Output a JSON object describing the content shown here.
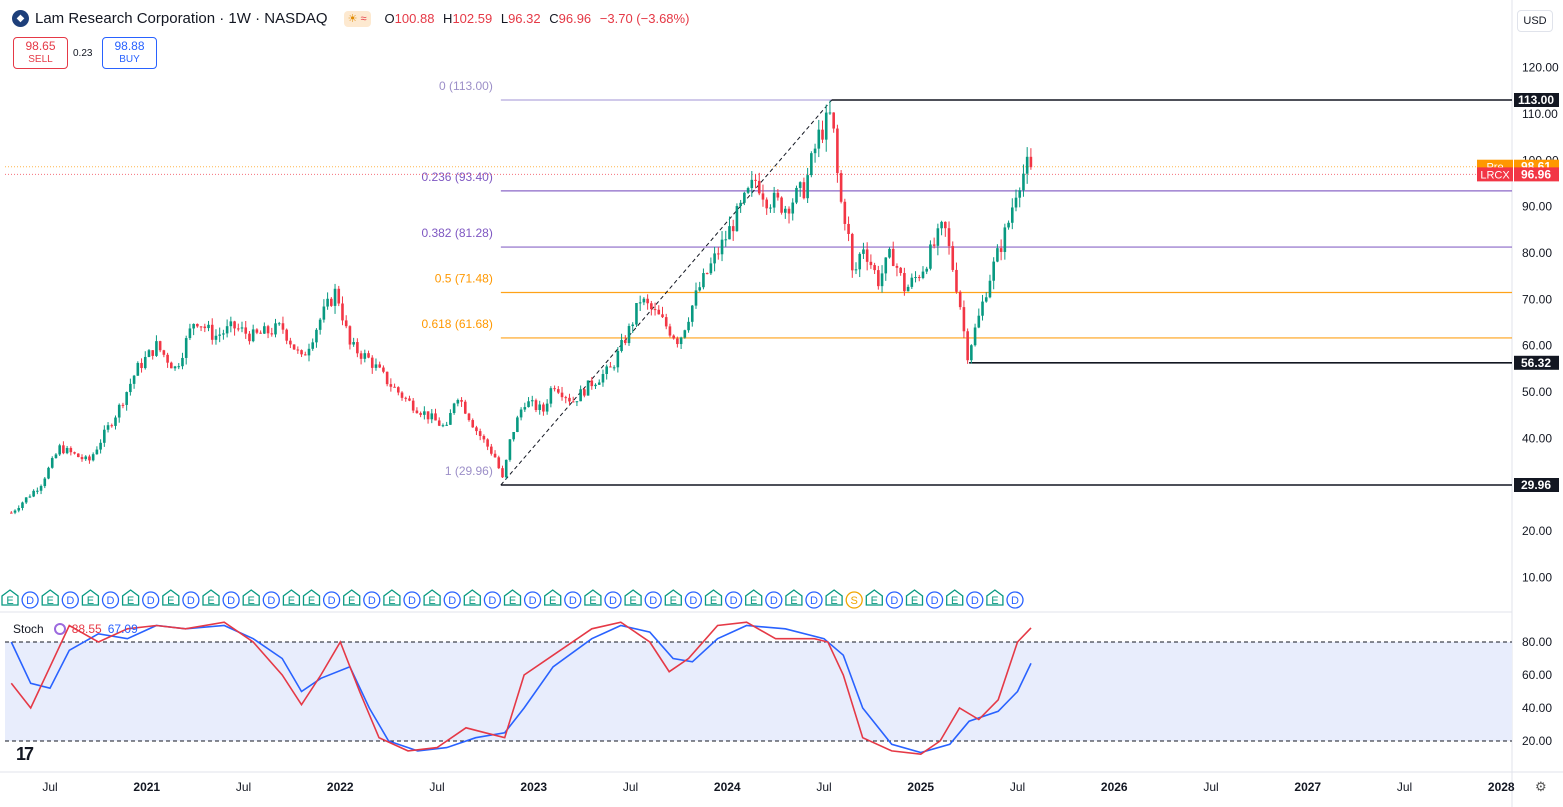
{
  "header": {
    "logo_glyph": "◆",
    "title": "Lam Research Corporation · 1W · NASDAQ",
    "session_icon": "☀",
    "session_icon2": "≈",
    "ohlc": {
      "o_label": "O",
      "o": "100.88",
      "h_label": "H",
      "h": "102.59",
      "l_label": "L",
      "l": "96.32",
      "c_label": "C",
      "c": "96.96",
      "change": "−3.70 (−3.68%)"
    }
  },
  "trade": {
    "sell_price": "98.65",
    "sell_label": "SELL",
    "spread": "0.23",
    "buy_price": "98.88",
    "buy_label": "BUY"
  },
  "currency": "USD",
  "stoch": {
    "label": "Stoch",
    "k_value": "88.55",
    "d_value": "67.09"
  },
  "tv_logo": "17",
  "settings_icon": "gear-icon",
  "colors": {
    "up": "#089981",
    "down": "#f23645",
    "fib_purple": "#7e57c2",
    "fib_orange": "#ff9800",
    "stoch_k": "#e53946",
    "stoch_d": "#2962ff",
    "band": "#e8edfc"
  },
  "chart_data": {
    "type": "candlestick",
    "y_axis_ticks": [
      "120.00",
      "110.00",
      "100.00",
      "90.00",
      "80.00",
      "70.00",
      "60.00",
      "50.00",
      "40.00",
      "30.00",
      "20.00",
      "10.00"
    ],
    "x_axis_ticks": [
      "Jul",
      "2021",
      "Jul",
      "2022",
      "Jul",
      "2023",
      "Jul",
      "2024",
      "Jul",
      "2025",
      "Jul",
      "2026",
      "Jul",
      "2027",
      "Jul",
      "2028"
    ],
    "price_labels": [
      {
        "text": "113.00",
        "value": 113.0,
        "style": "black"
      },
      {
        "tag": "Pre",
        "text": "98.61",
        "value": 98.61,
        "style": "orange"
      },
      {
        "tag": "LRCX",
        "text": "96.96",
        "value": 96.96,
        "style": "red"
      },
      {
        "text": "56.32",
        "value": 56.32,
        "style": "black"
      },
      {
        "text": "29.96",
        "value": 29.96,
        "style": "black"
      }
    ],
    "fib_levels": [
      {
        "label": "0 (113.00)",
        "value": 113.0,
        "color": "#9c8fc8"
      },
      {
        "label": "0.236 (93.40)",
        "value": 93.4,
        "color": "#7e57c2"
      },
      {
        "label": "0.382 (81.28)",
        "value": 81.28,
        "color": "#7e57c2"
      },
      {
        "label": "0.5 (71.48)",
        "value": 71.48,
        "color": "#ff9800"
      },
      {
        "label": "0.618 (61.68)",
        "value": 61.68,
        "color": "#ff9800"
      },
      {
        "label": "1 (29.96)",
        "value": 29.96,
        "color": "#9c8fc8"
      }
    ],
    "swing_line": {
      "from": [
        2022.83,
        29.96
      ],
      "to": [
        2024.54,
        113.0
      ]
    },
    "horizontal_lines": [
      {
        "value": 113.0,
        "from": 2024.54
      },
      {
        "value": 56.32,
        "from": 2025.25
      },
      {
        "value": 29.96,
        "from": 2022.83
      }
    ],
    "price_path": [
      [
        2020.3,
        24
      ],
      [
        2020.45,
        30
      ],
      [
        2020.55,
        38
      ],
      [
        2020.7,
        35
      ],
      [
        2020.85,
        46
      ],
      [
        2020.95,
        55
      ],
      [
        2021.05,
        60
      ],
      [
        2021.15,
        55
      ],
      [
        2021.25,
        66
      ],
      [
        2021.35,
        62
      ],
      [
        2021.45,
        64
      ],
      [
        2021.55,
        62
      ],
      [
        2021.7,
        64
      ],
      [
        2021.8,
        57
      ],
      [
        2021.9,
        66
      ],
      [
        2021.98,
        72
      ],
      [
        2022.05,
        60
      ],
      [
        2022.15,
        57
      ],
      [
        2022.25,
        52
      ],
      [
        2022.35,
        48
      ],
      [
        2022.45,
        45
      ],
      [
        2022.55,
        42
      ],
      [
        2022.6,
        50
      ],
      [
        2022.7,
        42
      ],
      [
        2022.8,
        36
      ],
      [
        2022.84,
        31
      ],
      [
        2022.88,
        40
      ],
      [
        2022.95,
        48
      ],
      [
        2023.05,
        46
      ],
      [
        2023.1,
        52
      ],
      [
        2023.2,
        48
      ],
      [
        2023.3,
        52
      ],
      [
        2023.4,
        55
      ],
      [
        2023.5,
        64
      ],
      [
        2023.55,
        70
      ],
      [
        2023.65,
        66
      ],
      [
        2023.75,
        61
      ],
      [
        2023.85,
        72
      ],
      [
        2023.95,
        80
      ],
      [
        2024.05,
        88
      ],
      [
        2024.15,
        96
      ],
      [
        2024.2,
        92
      ],
      [
        2024.3,
        90
      ],
      [
        2024.4,
        94
      ],
      [
        2024.47,
        105
      ],
      [
        2024.54,
        110
      ],
      [
        2024.58,
        92
      ],
      [
        2024.62,
        86
      ],
      [
        2024.65,
        74
      ],
      [
        2024.7,
        82
      ],
      [
        2024.78,
        74
      ],
      [
        2024.85,
        80
      ],
      [
        2024.92,
        72
      ],
      [
        2025.0,
        76
      ],
      [
        2025.05,
        80
      ],
      [
        2025.12,
        86
      ],
      [
        2025.16,
        78
      ],
      [
        2025.2,
        70
      ],
      [
        2025.24,
        58
      ],
      [
        2025.3,
        66
      ],
      [
        2025.35,
        74
      ],
      [
        2025.4,
        80
      ],
      [
        2025.45,
        86
      ],
      [
        2025.5,
        95
      ],
      [
        2025.55,
        98.6
      ],
      [
        2025.57,
        96.96
      ]
    ],
    "stoch_k": [
      [
        2020.3,
        55
      ],
      [
        2020.4,
        40
      ],
      [
        2020.5,
        65
      ],
      [
        2020.6,
        90
      ],
      [
        2020.75,
        80
      ],
      [
        2020.9,
        88
      ],
      [
        2021.05,
        90
      ],
      [
        2021.2,
        88
      ],
      [
        2021.4,
        92
      ],
      [
        2021.55,
        80
      ],
      [
        2021.7,
        60
      ],
      [
        2021.8,
        42
      ],
      [
        2021.9,
        60
      ],
      [
        2022.0,
        80
      ],
      [
        2022.1,
        50
      ],
      [
        2022.2,
        22
      ],
      [
        2022.35,
        14
      ],
      [
        2022.5,
        16
      ],
      [
        2022.65,
        28
      ],
      [
        2022.75,
        25
      ],
      [
        2022.85,
        22
      ],
      [
        2022.95,
        60
      ],
      [
        2023.1,
        72
      ],
      [
        2023.3,
        88
      ],
      [
        2023.45,
        92
      ],
      [
        2023.6,
        80
      ],
      [
        2023.7,
        62
      ],
      [
        2023.8,
        70
      ],
      [
        2023.95,
        90
      ],
      [
        2024.1,
        92
      ],
      [
        2024.25,
        82
      ],
      [
        2024.45,
        82
      ],
      [
        2024.52,
        80
      ],
      [
        2024.6,
        60
      ],
      [
        2024.7,
        22
      ],
      [
        2024.85,
        14
      ],
      [
        2025.0,
        12
      ],
      [
        2025.1,
        20
      ],
      [
        2025.2,
        40
      ],
      [
        2025.3,
        33
      ],
      [
        2025.4,
        45
      ],
      [
        2025.5,
        80
      ],
      [
        2025.57,
        88.55
      ]
    ],
    "stoch_d": [
      [
        2020.3,
        80
      ],
      [
        2020.4,
        55
      ],
      [
        2020.5,
        52
      ],
      [
        2020.6,
        75
      ],
      [
        2020.75,
        85
      ],
      [
        2020.9,
        82
      ],
      [
        2021.05,
        90
      ],
      [
        2021.2,
        88
      ],
      [
        2021.4,
        90
      ],
      [
        2021.55,
        82
      ],
      [
        2021.7,
        70
      ],
      [
        2021.8,
        50
      ],
      [
        2021.9,
        58
      ],
      [
        2022.05,
        65
      ],
      [
        2022.15,
        40
      ],
      [
        2022.25,
        20
      ],
      [
        2022.4,
        14
      ],
      [
        2022.55,
        16
      ],
      [
        2022.7,
        22
      ],
      [
        2022.85,
        25
      ],
      [
        2022.95,
        40
      ],
      [
        2023.1,
        65
      ],
      [
        2023.3,
        82
      ],
      [
        2023.45,
        90
      ],
      [
        2023.6,
        86
      ],
      [
        2023.72,
        70
      ],
      [
        2023.82,
        68
      ],
      [
        2023.95,
        82
      ],
      [
        2024.1,
        90
      ],
      [
        2024.3,
        88
      ],
      [
        2024.5,
        82
      ],
      [
        2024.6,
        72
      ],
      [
        2024.7,
        40
      ],
      [
        2024.85,
        18
      ],
      [
        2025.0,
        13
      ],
      [
        2025.15,
        18
      ],
      [
        2025.25,
        32
      ],
      [
        2025.4,
        38
      ],
      [
        2025.5,
        50
      ],
      [
        2025.57,
        67.09
      ]
    ],
    "stoch_levels": [
      80,
      20
    ],
    "stoch_ticks": [
      "80.00",
      "60.00",
      "40.00",
      "20.00"
    ],
    "event_row": "E D E D E D E D E D E D E D E E D E D E D E D E D E D E D E D E D E D E D E D E D E S E D E D E D E D E"
  }
}
